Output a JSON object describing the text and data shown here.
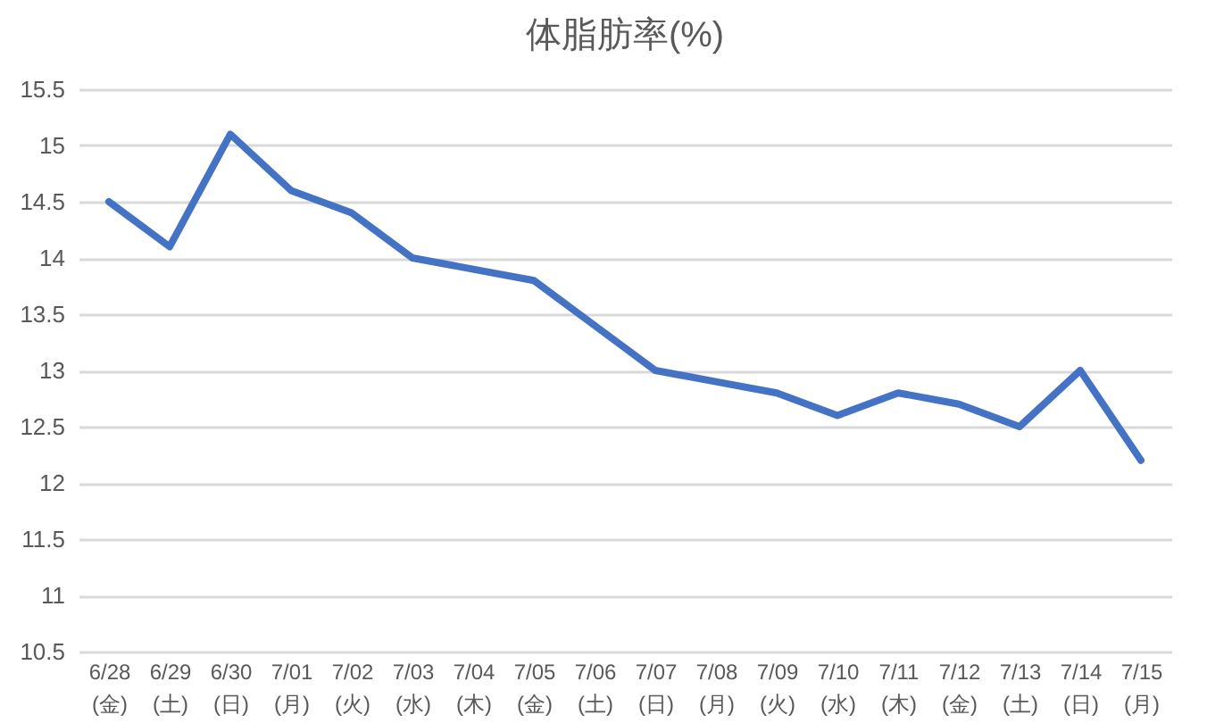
{
  "chart_data": {
    "type": "line",
    "title": "体脂肪率(%)",
    "categories": [
      "6/28(金)",
      "6/29(土)",
      "6/30(日)",
      "7/01(月)",
      "7/02(火)",
      "7/03(水)",
      "7/04(木)",
      "7/05(金)",
      "7/06(土)",
      "7/07(日)",
      "7/08(月)",
      "7/09(火)",
      "7/10(水)",
      "7/11(木)",
      "7/12(金)",
      "7/13(土)",
      "7/14(日)",
      "7/15(月)"
    ],
    "series": [
      {
        "color": "#4472c4",
        "values": [
          14.5,
          14.1,
          15.1,
          14.6,
          14.4,
          14.0,
          13.9,
          13.8,
          13.4,
          13.0,
          12.9,
          12.8,
          12.6,
          12.8,
          12.7,
          12.5,
          13.0,
          12.2
        ]
      }
    ],
    "ylim": [
      10.5,
      15.5
    ],
    "yticks": [
      10.5,
      11,
      11.5,
      12,
      12.5,
      13,
      13.5,
      14,
      14.5,
      15,
      15.5
    ],
    "grid": "y",
    "legend": false,
    "marker": "none",
    "line_style": "solid"
  }
}
